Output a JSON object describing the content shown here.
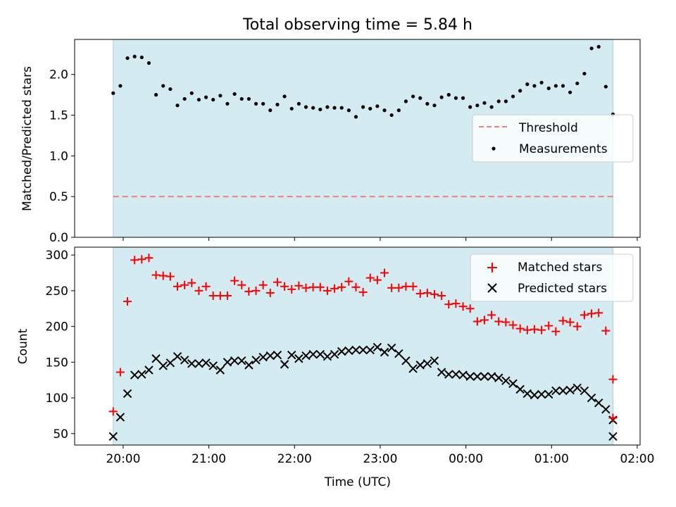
{
  "figure": {
    "title": "Total observing time = 5.84 h",
    "xlabel": "Time (UTC)",
    "xticks": [
      "20:00",
      "21:00",
      "22:00",
      "23:00",
      "00:00",
      "01:00",
      "02:00"
    ],
    "colors": {
      "observing_band": "#d3ebf1",
      "threshold": "#f08080",
      "measurements": "#000000",
      "matched": "#ff0000",
      "predicted": "#000000"
    }
  },
  "chart_data": [
    {
      "type": "scatter",
      "ylabel": "Matched/Predicted stars",
      "ylim": [
        0,
        2.43
      ],
      "yticks": [
        "0.0",
        "0.5",
        "1.0",
        "1.5",
        "2.0"
      ],
      "xlim": [
        "19:26",
        "02:02"
      ],
      "observing_window": [
        "19:53",
        "01:43"
      ],
      "legend_position": "center-right",
      "legend": [
        "Threshold",
        "Measurements"
      ],
      "threshold": {
        "name": "Threshold",
        "value": 0.5,
        "x_range": [
          "19:53",
          "01:43"
        ]
      },
      "series": [
        {
          "name": "Measurements",
          "x": [
            "19:53",
            "19:58",
            "20:03",
            "20:08",
            "20:13",
            "20:18",
            "20:23",
            "20:28",
            "20:33",
            "20:38",
            "20:43",
            "20:48",
            "20:53",
            "20:58",
            "21:03",
            "21:08",
            "21:13",
            "21:18",
            "21:23",
            "21:28",
            "21:33",
            "21:38",
            "21:43",
            "21:48",
            "21:53",
            "21:58",
            "22:03",
            "22:08",
            "22:13",
            "22:18",
            "22:23",
            "22:28",
            "22:33",
            "22:38",
            "22:43",
            "22:48",
            "22:53",
            "22:58",
            "23:03",
            "23:08",
            "23:13",
            "23:18",
            "23:23",
            "23:28",
            "23:33",
            "23:38",
            "23:43",
            "23:48",
            "23:53",
            "23:58",
            "00:03",
            "00:08",
            "00:13",
            "00:18",
            "00:23",
            "00:28",
            "00:33",
            "00:38",
            "00:43",
            "00:48",
            "00:53",
            "00:58",
            "01:03",
            "01:08",
            "01:13",
            "01:18",
            "01:23",
            "01:28",
            "01:33",
            "01:38",
            "01:43"
          ],
          "y": [
            1.77,
            1.86,
            2.2,
            2.22,
            2.21,
            2.14,
            1.75,
            1.86,
            1.82,
            1.62,
            1.7,
            1.77,
            1.69,
            1.72,
            1.69,
            1.74,
            1.64,
            1.76,
            1.7,
            1.7,
            1.64,
            1.64,
            1.56,
            1.63,
            1.73,
            1.58,
            1.64,
            1.6,
            1.59,
            1.57,
            1.6,
            1.59,
            1.59,
            1.56,
            1.48,
            1.6,
            1.58,
            1.61,
            1.56,
            1.5,
            1.56,
            1.67,
            1.73,
            1.71,
            1.64,
            1.62,
            1.72,
            1.75,
            1.71,
            1.71,
            1.6,
            1.62,
            1.65,
            1.6,
            1.67,
            1.67,
            1.73,
            1.8,
            1.88,
            1.86,
            1.9,
            1.83,
            1.86,
            1.86,
            1.78,
            1.89,
            2.01,
            2.32,
            2.34,
            1.85,
            1.51
          ]
        }
      ]
    },
    {
      "type": "scatter",
      "ylabel": "Count",
      "ylim": [
        34,
        311
      ],
      "yticks": [
        "50",
        "100",
        "150",
        "200",
        "250",
        "300"
      ],
      "xlim": [
        "19:26",
        "02:02"
      ],
      "observing_window": [
        "19:53",
        "01:43"
      ],
      "legend_position": "top-right",
      "legend": [
        "Matched stars",
        "Predicted stars"
      ],
      "series": [
        {
          "name": "Matched stars",
          "x": [
            "19:53",
            "19:58",
            "20:03",
            "20:08",
            "20:13",
            "20:18",
            "20:23",
            "20:28",
            "20:33",
            "20:38",
            "20:43",
            "20:48",
            "20:53",
            "20:58",
            "21:03",
            "21:08",
            "21:13",
            "21:18",
            "21:23",
            "21:28",
            "21:33",
            "21:38",
            "21:43",
            "21:48",
            "21:53",
            "21:58",
            "22:03",
            "22:08",
            "22:13",
            "22:18",
            "22:23",
            "22:28",
            "22:33",
            "22:38",
            "22:43",
            "22:48",
            "22:53",
            "22:58",
            "23:03",
            "23:08",
            "23:13",
            "23:18",
            "23:23",
            "23:28",
            "23:33",
            "23:38",
            "23:43",
            "23:48",
            "23:53",
            "23:58",
            "00:03",
            "00:08",
            "00:13",
            "00:18",
            "00:23",
            "00:28",
            "00:33",
            "00:38",
            "00:43",
            "00:48",
            "00:53",
            "00:58",
            "01:03",
            "01:08",
            "01:13",
            "01:18",
            "01:23",
            "01:28",
            "01:33",
            "01:38",
            "01:43"
          ],
          "y": [
            81,
            136,
            235,
            293,
            294,
            296,
            272,
            271,
            270,
            256,
            258,
            261,
            250,
            256,
            243,
            243,
            243,
            264,
            258,
            249,
            250,
            258,
            247,
            262,
            256,
            252,
            257,
            254,
            255,
            255,
            250,
            253,
            255,
            263,
            255,
            248,
            268,
            265,
            275,
            254,
            254,
            256,
            256,
            246,
            247,
            245,
            243,
            231,
            232,
            228,
            225,
            207,
            209,
            216,
            207,
            206,
            202,
            197,
            195,
            196,
            195,
            201,
            193,
            208,
            206,
            200,
            216,
            218,
            219,
            194,
            126
          ]
        },
        {
          "name": "Predicted stars",
          "x": [
            "19:53",
            "19:58",
            "20:03",
            "20:08",
            "20:13",
            "20:18",
            "20:23",
            "20:28",
            "20:33",
            "20:38",
            "20:43",
            "20:48",
            "20:53",
            "20:58",
            "21:03",
            "21:08",
            "21:13",
            "21:18",
            "21:23",
            "21:28",
            "21:33",
            "21:38",
            "21:43",
            "21:48",
            "21:53",
            "21:58",
            "22:03",
            "22:08",
            "22:13",
            "22:18",
            "22:23",
            "22:28",
            "22:33",
            "22:38",
            "22:43",
            "22:48",
            "22:53",
            "22:58",
            "23:03",
            "23:08",
            "23:13",
            "23:18",
            "23:23",
            "23:28",
            "23:33",
            "23:38",
            "23:43",
            "23:48",
            "23:53",
            "23:58",
            "00:03",
            "00:08",
            "00:13",
            "00:18",
            "00:23",
            "00:28",
            "00:33",
            "00:38",
            "00:43",
            "00:48",
            "00:53",
            "00:58",
            "01:03",
            "01:08",
            "01:13",
            "01:18",
            "01:23",
            "01:28",
            "01:33",
            "01:38",
            "01:43"
          ],
          "y": [
            46,
            73,
            106,
            132,
            133,
            139,
            155,
            145,
            149,
            158,
            153,
            148,
            148,
            149,
            145,
            139,
            150,
            152,
            152,
            146,
            153,
            157,
            159,
            160,
            147,
            160,
            155,
            159,
            161,
            161,
            158,
            161,
            165,
            166,
            167,
            167,
            167,
            171,
            164,
            170,
            162,
            152,
            141,
            146,
            148,
            152,
            136,
            133,
            133,
            132,
            130,
            130,
            130,
            130,
            128,
            124,
            120,
            112,
            106,
            104,
            105,
            105,
            110,
            110,
            111,
            114,
            110,
            100,
            93,
            84,
            69
          ]
        },
        {
          "name": "",
          "marker": "+",
          "x": [
            "01:43"
          ],
          "y": [
            72
          ]
        },
        {
          "name": "",
          "marker": "x",
          "x": [
            "01:43"
          ],
          "y": [
            46
          ]
        }
      ]
    }
  ]
}
